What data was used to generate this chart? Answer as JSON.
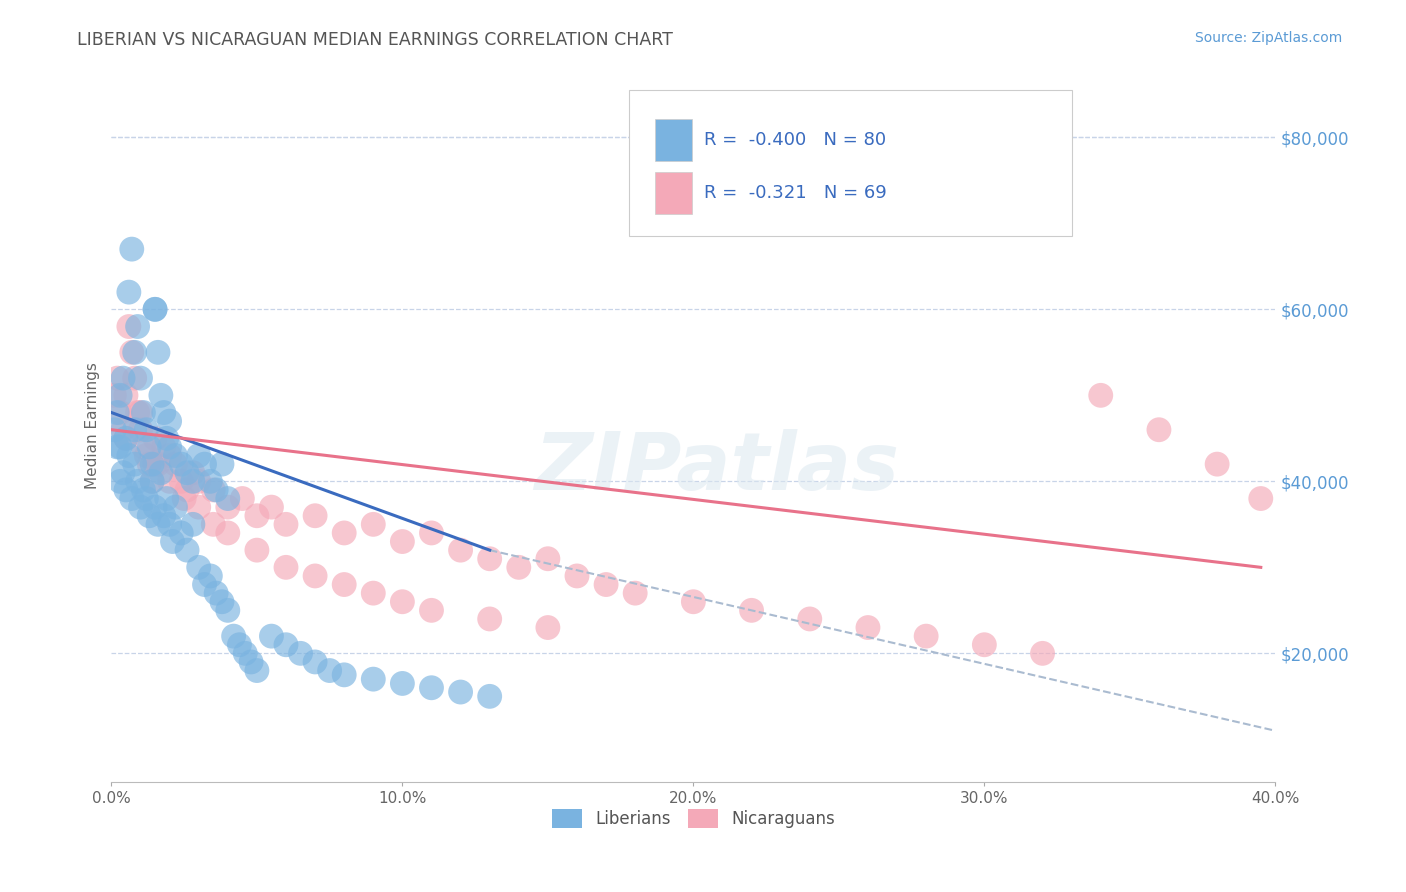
{
  "title": "LIBERIAN VS NICARAGUAN MEDIAN EARNINGS CORRELATION CHART",
  "source_text": "Source: ZipAtlas.com",
  "ylabel": "Median Earnings",
  "x_min": 0.0,
  "x_max": 0.4,
  "y_min": 5000,
  "y_max": 88000,
  "x_ticks": [
    0.0,
    0.1,
    0.2,
    0.3,
    0.4
  ],
  "x_tick_labels": [
    "0.0%",
    "10.0%",
    "20.0%",
    "30.0%",
    "40.0%"
  ],
  "y_ticks_right": [
    20000,
    40000,
    60000,
    80000
  ],
  "y_tick_labels_right": [
    "$20,000",
    "$40,000",
    "$60,000",
    "$80,000"
  ],
  "liberian_R": -0.4,
  "liberian_N": 80,
  "nicaraguan_R": -0.321,
  "nicaraguan_N": 69,
  "liberian_color": "#7ab3e0",
  "nicaraguan_color": "#f4a9b8",
  "liberian_line_color": "#3a6bbf",
  "nicaraguan_line_color": "#e8728a",
  "trend_line_dashed_color": "#aabbd0",
  "background_color": "#ffffff",
  "grid_color": "#c8d4e8",
  "title_color": "#555555",
  "right_label_color": "#5b9bd5",
  "legend_label_color": "#3a6bbf",
  "liberian_x": [
    0.001,
    0.002,
    0.003,
    0.004,
    0.005,
    0.006,
    0.007,
    0.008,
    0.009,
    0.01,
    0.011,
    0.012,
    0.013,
    0.014,
    0.015,
    0.016,
    0.017,
    0.018,
    0.019,
    0.02,
    0.022,
    0.024,
    0.026,
    0.028,
    0.03,
    0.032,
    0.034,
    0.036,
    0.038,
    0.04,
    0.002,
    0.003,
    0.004,
    0.005,
    0.006,
    0.007,
    0.008,
    0.009,
    0.01,
    0.011,
    0.012,
    0.013,
    0.014,
    0.015,
    0.016,
    0.017,
    0.018,
    0.019,
    0.02,
    0.021,
    0.022,
    0.024,
    0.026,
    0.028,
    0.03,
    0.032,
    0.034,
    0.036,
    0.038,
    0.04,
    0.042,
    0.044,
    0.046,
    0.048,
    0.05,
    0.055,
    0.06,
    0.065,
    0.07,
    0.075,
    0.08,
    0.09,
    0.1,
    0.11,
    0.12,
    0.13,
    0.003,
    0.008,
    0.015,
    0.02
  ],
  "liberian_y": [
    46000,
    48000,
    50000,
    52000,
    45000,
    62000,
    67000,
    55000,
    58000,
    52000,
    48000,
    46000,
    44000,
    42000,
    60000,
    55000,
    50000,
    48000,
    45000,
    44000,
    43000,
    42000,
    41000,
    40000,
    43000,
    42000,
    40000,
    39000,
    42000,
    38000,
    44000,
    40000,
    41000,
    39000,
    43000,
    38000,
    42000,
    40000,
    37000,
    39000,
    38000,
    36000,
    40000,
    37000,
    35000,
    41000,
    36000,
    38000,
    35000,
    33000,
    37000,
    34000,
    32000,
    35000,
    30000,
    28000,
    29000,
    27000,
    26000,
    25000,
    22000,
    21000,
    20000,
    19000,
    18000,
    22000,
    21000,
    20000,
    19000,
    18000,
    17500,
    17000,
    16500,
    16000,
    15500,
    15000,
    44000,
    46000,
    60000,
    47000
  ],
  "nicaraguan_x": [
    0.001,
    0.002,
    0.003,
    0.004,
    0.005,
    0.006,
    0.007,
    0.008,
    0.009,
    0.01,
    0.011,
    0.012,
    0.013,
    0.014,
    0.015,
    0.016,
    0.018,
    0.02,
    0.022,
    0.024,
    0.026,
    0.028,
    0.03,
    0.035,
    0.04,
    0.045,
    0.05,
    0.055,
    0.06,
    0.07,
    0.08,
    0.09,
    0.1,
    0.11,
    0.12,
    0.13,
    0.14,
    0.15,
    0.16,
    0.17,
    0.18,
    0.2,
    0.22,
    0.24,
    0.26,
    0.28,
    0.3,
    0.32,
    0.34,
    0.36,
    0.38,
    0.395,
    0.005,
    0.01,
    0.015,
    0.02,
    0.025,
    0.03,
    0.035,
    0.04,
    0.05,
    0.06,
    0.07,
    0.08,
    0.09,
    0.1,
    0.11,
    0.13,
    0.15
  ],
  "nicaraguan_y": [
    50000,
    52000,
    48000,
    46000,
    50000,
    58000,
    55000,
    52000,
    48000,
    46000,
    44000,
    43000,
    42000,
    40000,
    45000,
    42000,
    44000,
    43000,
    42000,
    40000,
    39000,
    41000,
    40000,
    39000,
    37000,
    38000,
    36000,
    37000,
    35000,
    36000,
    34000,
    35000,
    33000,
    34000,
    32000,
    31000,
    30000,
    31000,
    29000,
    28000,
    27000,
    26000,
    25000,
    24000,
    23000,
    22000,
    21000,
    20000,
    50000,
    46000,
    42000,
    38000,
    45000,
    48000,
    42000,
    40000,
    38000,
    37000,
    35000,
    34000,
    32000,
    30000,
    29000,
    28000,
    27000,
    26000,
    25000,
    24000,
    23000
  ],
  "liberian_trend_x": [
    0.0,
    0.13
  ],
  "liberian_trend_y": [
    48000,
    32000
  ],
  "nicaraguan_trend_x": [
    0.0,
    0.395
  ],
  "nicaraguan_trend_y": [
    46000,
    30000
  ],
  "dashed_trend_x": [
    0.13,
    0.4
  ],
  "dashed_trend_y": [
    32000,
    11000
  ],
  "watermark_text": "ZIPatlas",
  "bottom_legend_labels": [
    "Liberians",
    "Nicaraguans"
  ]
}
